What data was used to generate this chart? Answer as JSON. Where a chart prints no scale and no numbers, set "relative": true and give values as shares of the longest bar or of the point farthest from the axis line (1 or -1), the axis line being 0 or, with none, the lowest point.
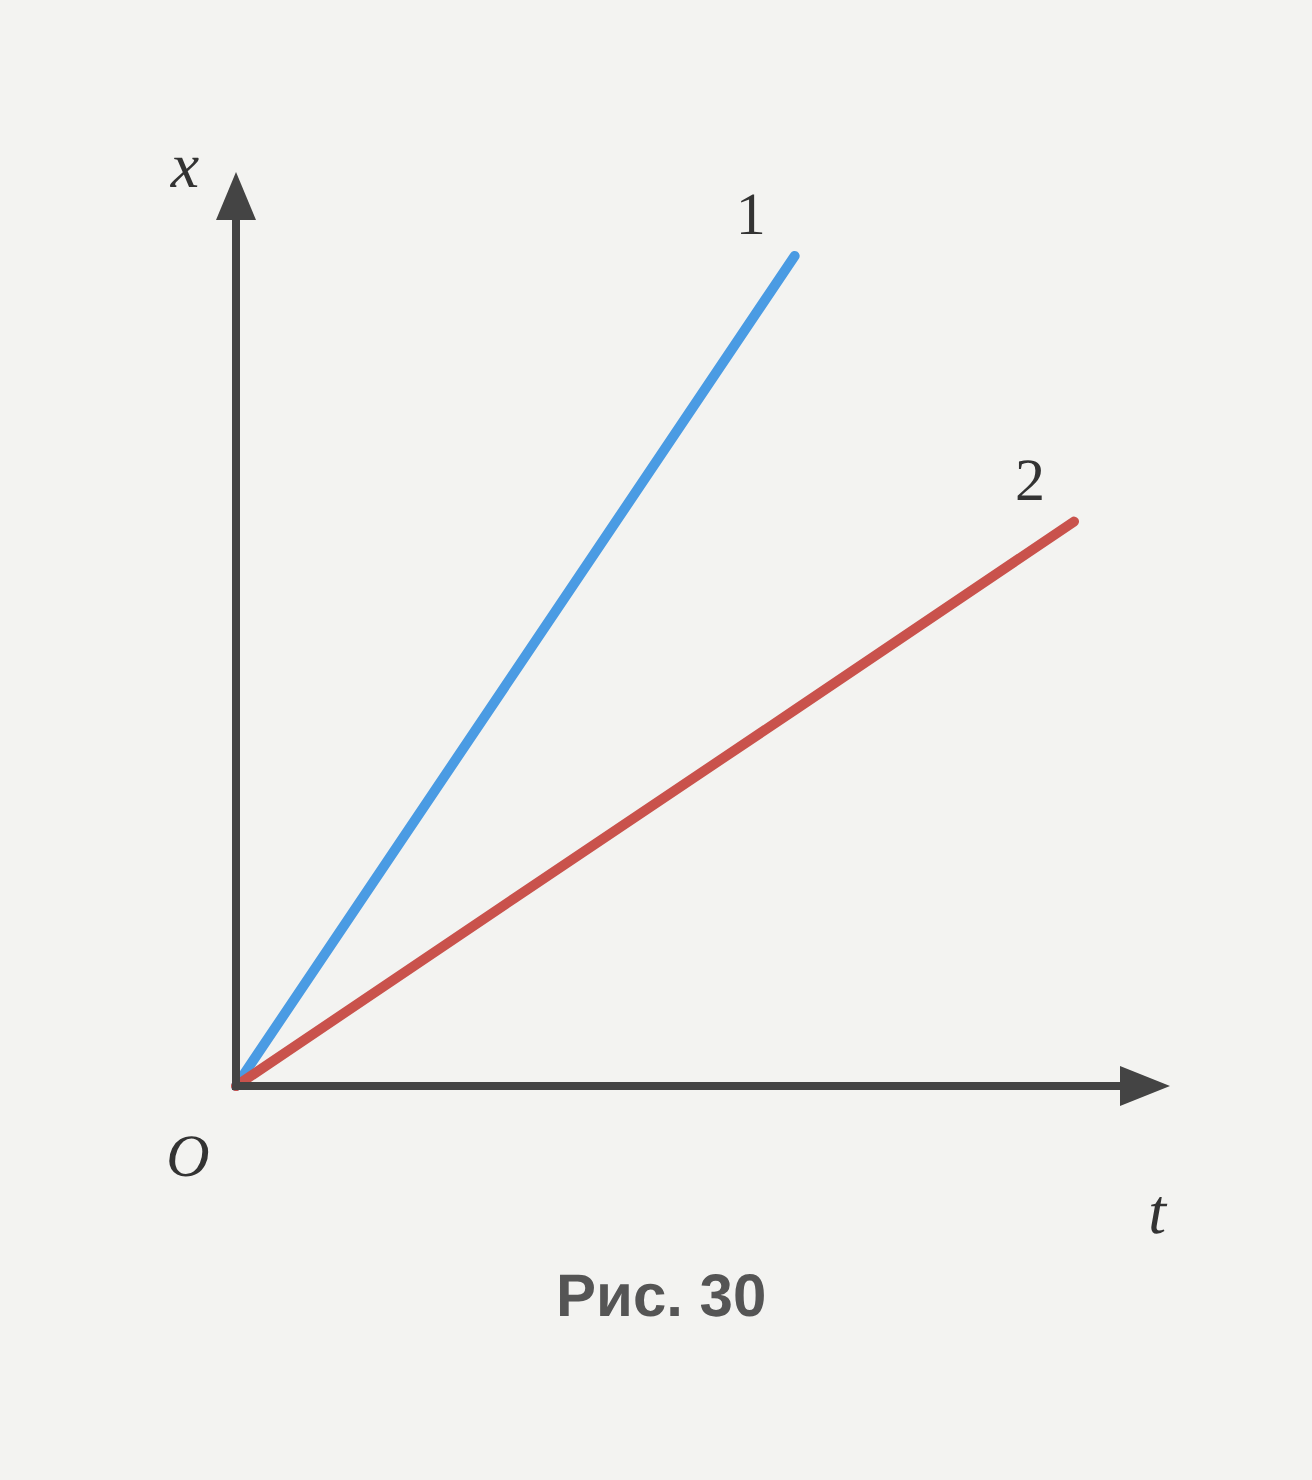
{
  "chart_data": {
    "type": "line",
    "relative": true,
    "xlabel": "t",
    "ylabel": "x",
    "categories": [
      null,
      null,
      null,
      null
    ],
    "series": [
      {
        "name": "1",
        "color": "#4a9be3",
        "values": [
          0,
          0.5,
          1,
          null
        ]
      },
      {
        "name": "2",
        "color": "#c9524c",
        "values": [
          0,
          0.227,
          0.453,
          0.68
        ]
      }
    ],
    "annotations": [
      "O",
      "Рис. 30"
    ]
  }
}
